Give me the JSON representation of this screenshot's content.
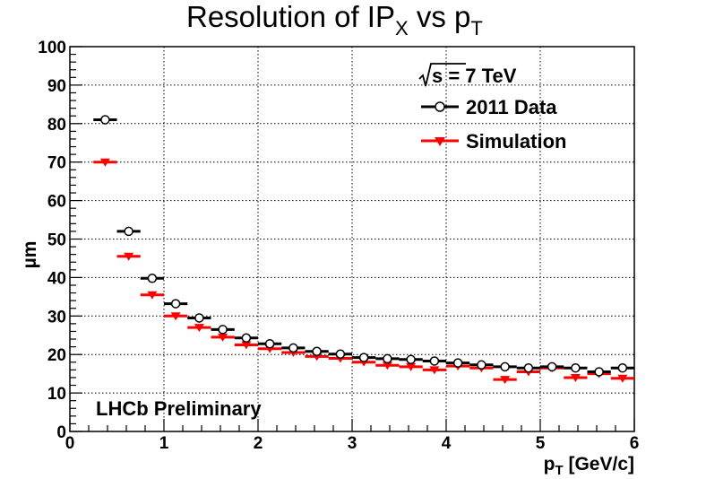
{
  "chart_data": {
    "type": "scatter",
    "title_main": "Resolution of IP",
    "title_sub": "X",
    "title_mid": " vs p",
    "title_sub2": "T",
    "xlabel_main": "p",
    "xlabel_sub": "T",
    "xlabel_rest": " [GeV/c]",
    "ylabel": "µm",
    "xlim": [
      0,
      6
    ],
    "ylim": [
      0,
      100
    ],
    "x_ticks": [
      "0",
      "1",
      "2",
      "3",
      "4",
      "5",
      "6"
    ],
    "y_ticks": [
      "0",
      "10",
      "20",
      "30",
      "40",
      "50",
      "60",
      "70",
      "80",
      "90",
      "100"
    ],
    "grid": true,
    "annotation_energy": "s = 7 TeV",
    "annotation_lhcb": "LHCb Preliminary",
    "series": [
      {
        "name": "2011 Data",
        "color": "#000000",
        "marker": "open-circle",
        "x_low": [
          0.25,
          0.5,
          0.75,
          1.0,
          1.25,
          1.5,
          1.75,
          2.0,
          2.25,
          2.5,
          2.75,
          3.0,
          3.25,
          3.5,
          3.75,
          4.0,
          4.25,
          4.5,
          4.75,
          5.0,
          5.25,
          5.5,
          5.75
        ],
        "x_high": [
          0.5,
          0.75,
          1.0,
          1.25,
          1.5,
          1.75,
          2.0,
          2.25,
          2.5,
          2.75,
          3.0,
          3.25,
          3.5,
          3.75,
          4.0,
          4.25,
          4.5,
          4.75,
          5.0,
          5.25,
          5.5,
          5.75,
          6.0
        ],
        "values": [
          81.0,
          52.0,
          39.8,
          33.2,
          29.5,
          26.5,
          24.3,
          22.8,
          21.7,
          20.8,
          20.1,
          19.2,
          18.9,
          18.7,
          18.3,
          17.8,
          17.3,
          16.8,
          16.5,
          16.8,
          16.5,
          15.5,
          16.5
        ]
      },
      {
        "name": "Simulation",
        "color": "#ff0000",
        "marker": "filled-triangle-down",
        "x_low": [
          0.25,
          0.5,
          0.75,
          1.0,
          1.25,
          1.5,
          1.75,
          2.0,
          2.25,
          2.5,
          2.75,
          3.0,
          3.25,
          3.5,
          3.75,
          4.0,
          4.25,
          4.5,
          4.75,
          5.0,
          5.25,
          5.5,
          5.75
        ],
        "x_high": [
          0.5,
          0.75,
          1.0,
          1.25,
          1.5,
          1.75,
          2.0,
          2.25,
          2.5,
          2.75,
          3.0,
          3.25,
          3.5,
          3.75,
          4.0,
          4.25,
          4.5,
          4.75,
          5.0,
          5.25,
          5.5,
          5.75,
          6.0
        ],
        "values": [
          70.0,
          45.5,
          35.5,
          30.0,
          27.0,
          24.5,
          22.5,
          21.5,
          20.5,
          19.5,
          19.0,
          18.0,
          17.2,
          16.8,
          16.0,
          17.0,
          16.5,
          13.5,
          15.5,
          16.5,
          14.0,
          15.0,
          13.8
        ]
      }
    ]
  }
}
